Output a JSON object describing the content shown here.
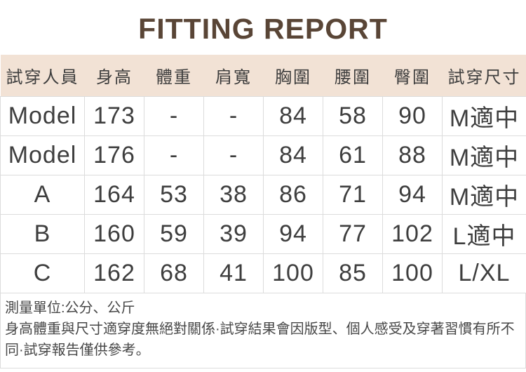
{
  "title": "FITTING REPORT",
  "colors": {
    "title_text": "#594536",
    "header_bg": "#f2e2d5",
    "body_text": "#3e3e3e",
    "border": "#dcdcdc",
    "note_text": "#474747"
  },
  "table": {
    "headers": [
      "試穿人員",
      "身高",
      "體重",
      "肩寬",
      "胸圍",
      "腰圍",
      "臀圍",
      "試穿尺寸"
    ],
    "rows": [
      {
        "cells": [
          "Model",
          "173",
          "-",
          "-",
          "84",
          "58",
          "90",
          "M適中"
        ]
      },
      {
        "cells": [
          "Model",
          "176",
          "-",
          "-",
          "84",
          "61",
          "88",
          "M適中"
        ]
      },
      {
        "cells": [
          "A",
          "164",
          "53",
          "38",
          "86",
          "71",
          "94",
          "M適中"
        ]
      },
      {
        "cells": [
          "B",
          "160",
          "59",
          "39",
          "94",
          "77",
          "102",
          "L適中"
        ]
      },
      {
        "cells": [
          "C",
          "162",
          "68",
          "41",
          "100",
          "85",
          "100",
          "L/XL"
        ]
      }
    ]
  },
  "notes": {
    "unit_line": "測量單位:公分、公斤",
    "disclaimer": "身高體重與尺寸適穿度無絕對關係·試穿結果會因版型、個人感受及穿著習慣有所不同·試穿報告僅供參考。"
  }
}
